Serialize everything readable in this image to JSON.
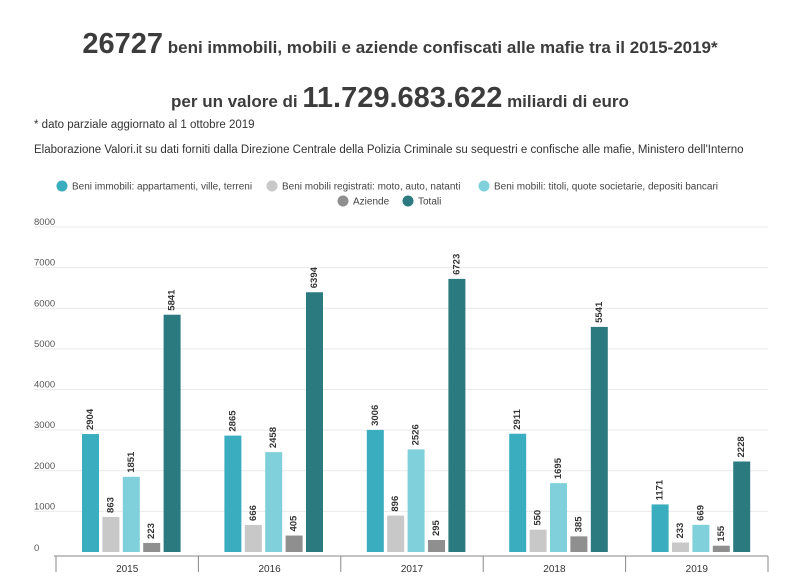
{
  "header": {
    "total_count": "26727",
    "title_rest": " beni immobili, mobili e aziende confiscati alle mafie tra il 2015-2019*",
    "value_prefix": "per un valore di ",
    "value_amount": "11.729.683.622",
    "value_suffix": " miliardi di euro",
    "note": "* dato parziale aggiornato al 1 ottobre 2019",
    "source": "Elaborazione Valori.it su dati forniti dalla Direzione Centrale della Polizia Criminale su sequestri e confische alle mafie, Ministero dell'Interno"
  },
  "chart_data": {
    "type": "bar",
    "categories": [
      "2015",
      "2016",
      "2017",
      "2018",
      "2019"
    ],
    "ylim": [
      0,
      8000
    ],
    "yticks": [
      0,
      1000,
      2000,
      3000,
      4000,
      5000,
      6000,
      7000,
      8000
    ],
    "legend_position": "top",
    "series": [
      {
        "name": "Beni immobili: appartamenti, ville, terreni",
        "color": "#3aaebf",
        "values": [
          2904,
          2865,
          3006,
          2911,
          1171
        ]
      },
      {
        "name": "Beni mobili registrati: moto, auto, natanti",
        "color": "#c8c8c8",
        "values": [
          863,
          666,
          896,
          550,
          233
        ]
      },
      {
        "name": "Beni mobili: titoli, quote societarie, depositi bancari",
        "color": "#7fd0da",
        "values": [
          1851,
          2458,
          2526,
          1695,
          669
        ]
      },
      {
        "name": "Aziende",
        "color": "#8f8f8f",
        "values": [
          223,
          405,
          295,
          385,
          155
        ]
      },
      {
        "name": "Totali",
        "color": "#2b7a7f",
        "values": [
          5841,
          6394,
          6723,
          5541,
          2228
        ]
      }
    ]
  }
}
